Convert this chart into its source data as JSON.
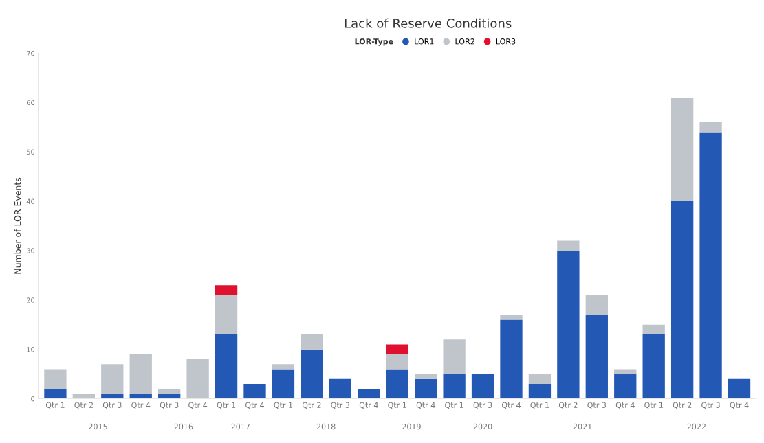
{
  "chart_data": {
    "type": "bar",
    "title": "Lack of Reserve Conditions",
    "ylabel": "Number of LOR Events",
    "legend_title": "LOR-Type",
    "legend": "top",
    "stacked": true,
    "grid": false,
    "categories": [
      "Qtr 1",
      "Qtr 2",
      "Qtr 3",
      "Qtr 4",
      "Qtr 3",
      "Qtr 4",
      "Qtr 1",
      "Qtr 4",
      "Qtr 1",
      "Qtr 2",
      "Qtr 3",
      "Qtr 4",
      "Qtr 1",
      "Qtr 4",
      "Qtr 1",
      "Qtr 3",
      "Qtr 4",
      "Qtr 1",
      "Qtr 2",
      "Qtr 3",
      "Qtr 4",
      "Qtr 1",
      "Qtr 2",
      "Qtr 3",
      "Qtr 4"
    ],
    "series": [
      {
        "name": "LOR1",
        "color": "#2359b5",
        "values": [
          2,
          0,
          1,
          1,
          1,
          0,
          13,
          3,
          6,
          10,
          4,
          2,
          6,
          4,
          5,
          5,
          16,
          3,
          30,
          17,
          5,
          13,
          40,
          54,
          4
        ]
      },
      {
        "name": "LOR2",
        "color": "#c0c4cb",
        "values": [
          4,
          1,
          6,
          8,
          1,
          8,
          8,
          0,
          1,
          3,
          0,
          0,
          3,
          1,
          7,
          0,
          1,
          2,
          2,
          4,
          1,
          2,
          21,
          2,
          0
        ]
      },
      {
        "name": "LOR3",
        "color": "#e0102f",
        "values": [
          0,
          0,
          0,
          0,
          0,
          0,
          2,
          0,
          0,
          0,
          0,
          0,
          2,
          0,
          0,
          0,
          0,
          0,
          0,
          0,
          0,
          0,
          0,
          0,
          0
        ]
      }
    ],
    "annotations": [
      "2015",
      "2016",
      "2017",
      "2018",
      "2019",
      "2020",
      "2021",
      "2022"
    ],
    "ylim": [
      0,
      70
    ],
    "yticks": [
      0,
      10,
      20,
      30,
      40,
      50,
      60,
      70
    ]
  }
}
